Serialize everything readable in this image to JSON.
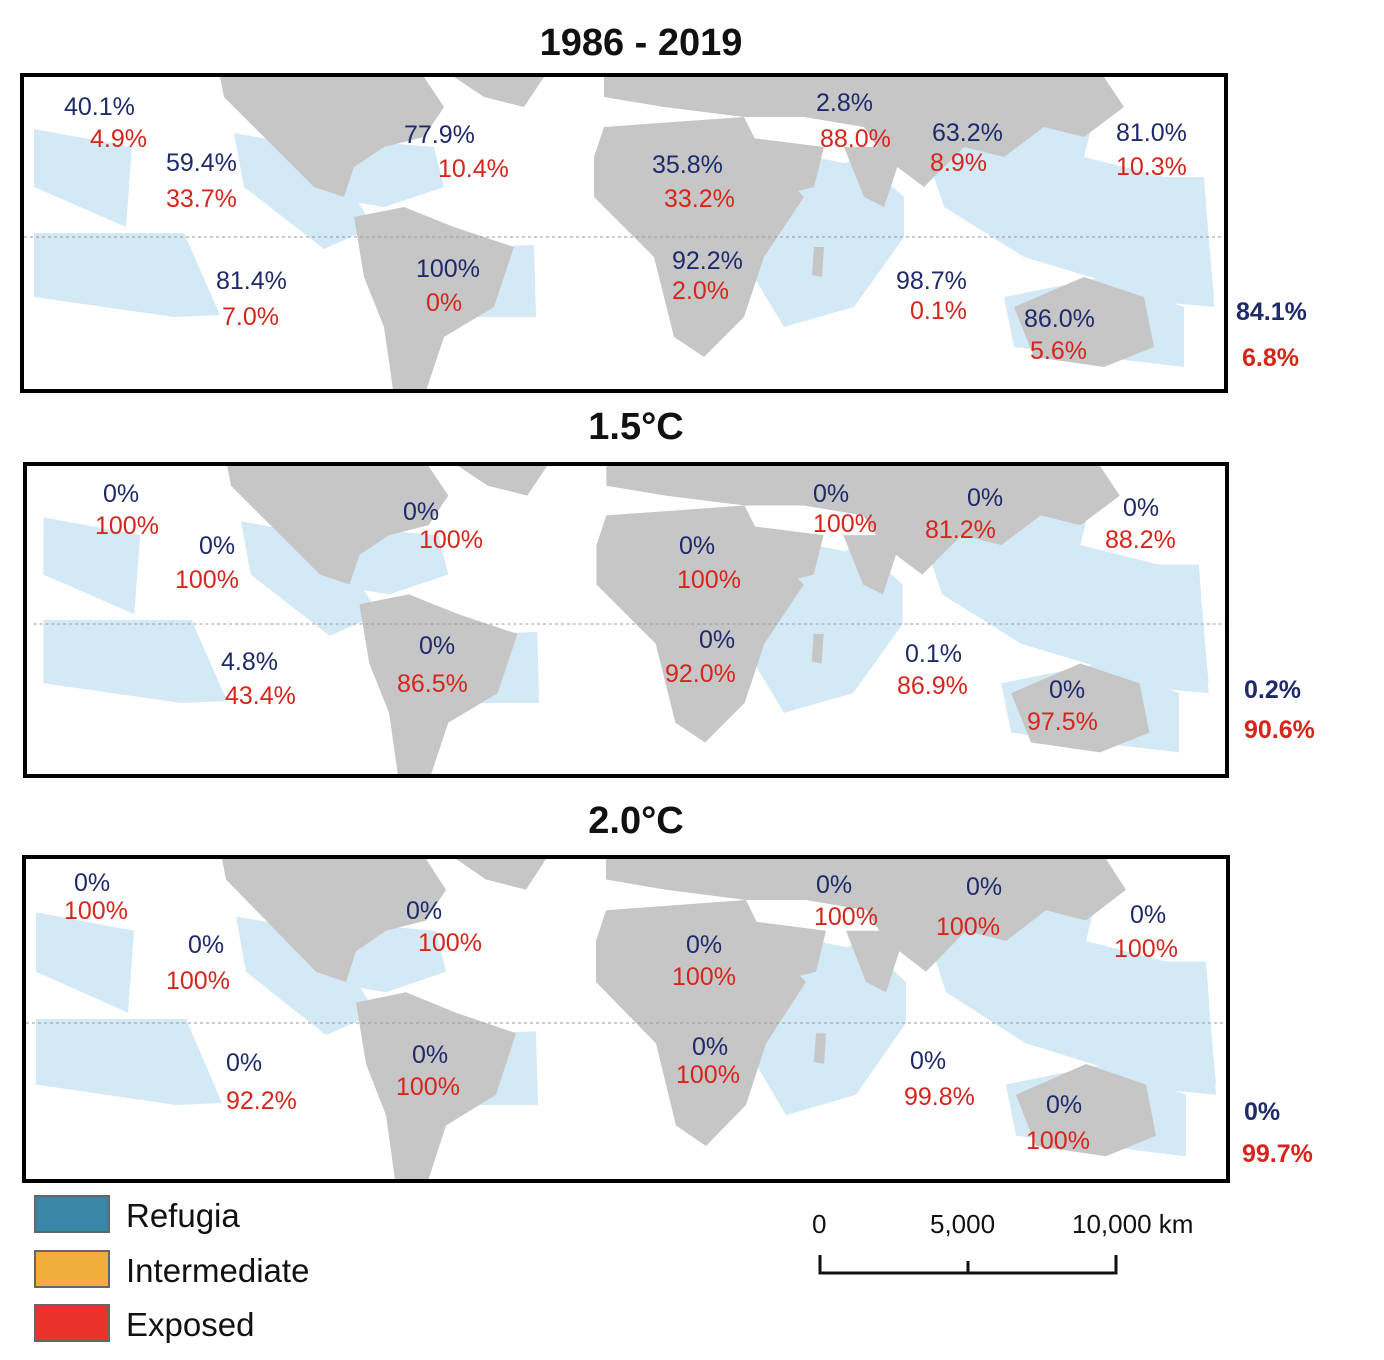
{
  "panels": [
    {
      "title": "1986 - 2019",
      "regions": [
        {
          "refugia": "40.1%",
          "exposed": "4.9%"
        },
        {
          "refugia": "59.4%",
          "exposed": "33.7%"
        },
        {
          "refugia": "77.9%",
          "exposed": "10.4%"
        },
        {
          "refugia": "81.4%",
          "exposed": "7.0%"
        },
        {
          "refugia": "100%",
          "exposed": "0%"
        },
        {
          "refugia": "35.8%",
          "exposed": "33.2%"
        },
        {
          "refugia": "2.8%",
          "exposed": "88.0%"
        },
        {
          "refugia": "92.2%",
          "exposed": "2.0%"
        },
        {
          "refugia": "63.2%",
          "exposed": "8.9%"
        },
        {
          "refugia": "81.0%",
          "exposed": "10.3%"
        },
        {
          "refugia": "98.7%",
          "exposed": "0.1%"
        },
        {
          "refugia": "86.0%",
          "exposed": "5.6%"
        }
      ],
      "total": {
        "refugia": "84.1%",
        "exposed": "6.8%"
      }
    },
    {
      "title": "1.5°C",
      "regions": [
        {
          "refugia": "0%",
          "exposed": "100%"
        },
        {
          "refugia": "0%",
          "exposed": "100%"
        },
        {
          "refugia": "0%",
          "exposed": "100%"
        },
        {
          "refugia": "4.8%",
          "exposed": "43.4%"
        },
        {
          "refugia": "0%",
          "exposed": "86.5%"
        },
        {
          "refugia": "0%",
          "exposed": "100%"
        },
        {
          "refugia": "0%",
          "exposed": "100%"
        },
        {
          "refugia": "0%",
          "exposed": "92.0%"
        },
        {
          "refugia": "0%",
          "exposed": "81.2%"
        },
        {
          "refugia": "0%",
          "exposed": "88.2%"
        },
        {
          "refugia": "0.1%",
          "exposed": "86.9%"
        },
        {
          "refugia": "0%",
          "exposed": "97.5%"
        }
      ],
      "total": {
        "refugia": "0.2%",
        "exposed": "90.6%"
      }
    },
    {
      "title": "2.0°C",
      "regions": [
        {
          "refugia": "0%",
          "exposed": "100%"
        },
        {
          "refugia": "0%",
          "exposed": "100%"
        },
        {
          "refugia": "0%",
          "exposed": "100%"
        },
        {
          "refugia": "0%",
          "exposed": "92.2%"
        },
        {
          "refugia": "0%",
          "exposed": "100%"
        },
        {
          "refugia": "0%",
          "exposed": "100%"
        },
        {
          "refugia": "0%",
          "exposed": "100%"
        },
        {
          "refugia": "0%",
          "exposed": "100%"
        },
        {
          "refugia": "0%",
          "exposed": "100%"
        },
        {
          "refugia": "0%",
          "exposed": "100%"
        },
        {
          "refugia": "0%",
          "exposed": "99.8%"
        },
        {
          "refugia": "0%",
          "exposed": "100%"
        }
      ],
      "total": {
        "refugia": "0%",
        "exposed": "99.7%"
      }
    }
  ],
  "legend": [
    {
      "label": "Refugia",
      "color": "#3a86a8"
    },
    {
      "label": "Intermediate",
      "color": "#f2ae3a"
    },
    {
      "label": "Exposed",
      "color": "#e8322a"
    }
  ],
  "scale_bar": {
    "ticks": [
      "0",
      "5,000",
      "10,000 km"
    ]
  },
  "colors": {
    "land": "#c6c6c6",
    "ocean_region": "#d3e9f5",
    "refugia_text": "#1f2a6b",
    "exposed_text": "#d6261c"
  }
}
